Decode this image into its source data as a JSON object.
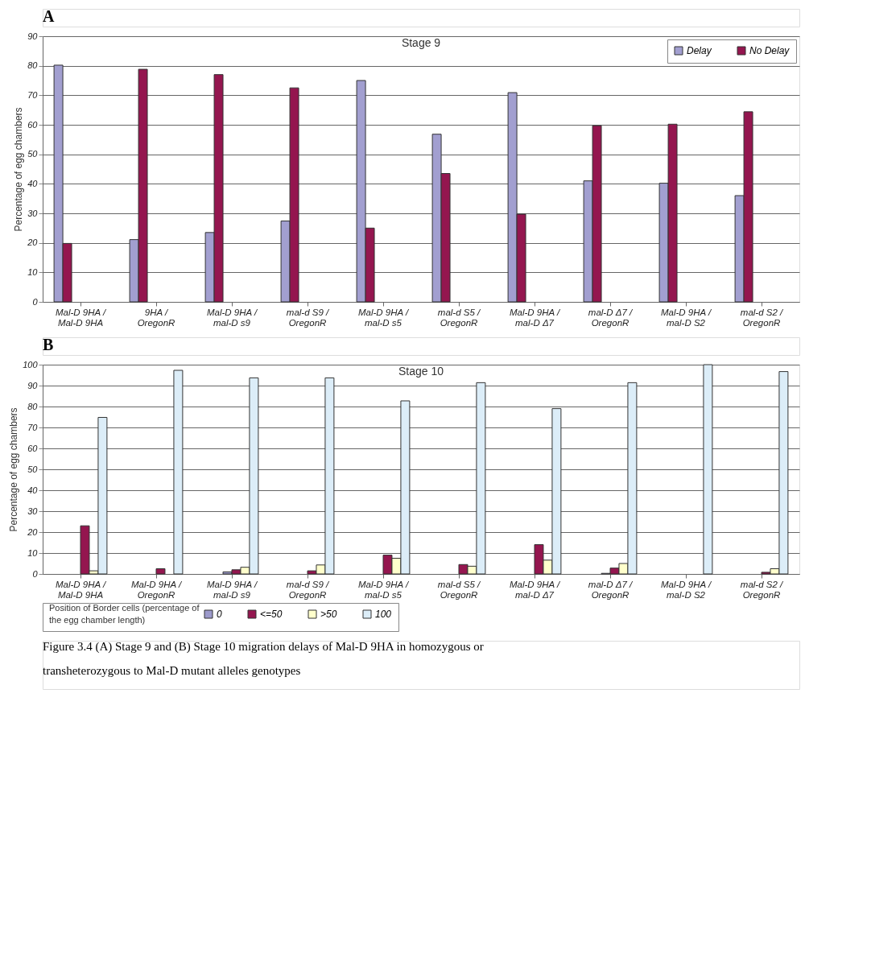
{
  "chart_data": [
    {
      "type": "bar",
      "title": "Stage 9",
      "ylabel": "Percentage of egg chambers",
      "annotations": [
        "A"
      ],
      "categories": [
        "Mal-D 9HA / Mal-D 9HA",
        "9HA / OregonR",
        "Mal-D 9HA / mal-D s9",
        "mal-d S9 / OregonR",
        "Mal-D 9HA / mal-D s5",
        "mal-d S5 / OregonR",
        "Mal-D 9HA / mal-D Δ7",
        "mal-D Δ7 / OregonR",
        "Mal-D 9HA / mal-D S2",
        "mal-d S2 / OregonR"
      ],
      "series": [
        {
          "name": "Delay",
          "color": "#a29fd0",
          "values": [
            80.2,
            21.1,
            23.5,
            27.4,
            75,
            56.8,
            70.9,
            41,
            40.2,
            36
          ]
        },
        {
          "name": "No Delay",
          "color": "#94164f",
          "values": [
            19.8,
            78.8,
            77,
            72.5,
            25,
            43.5,
            29.7,
            59.7,
            60.2,
            64.4
          ]
        }
      ],
      "ylim": [
        0,
        90
      ],
      "yticks": [
        0,
        10,
        20,
        30,
        40,
        50,
        60,
        70,
        80,
        90
      ],
      "grid": "y",
      "legend": "top right"
    },
    {
      "type": "bar",
      "title": "Stage 10",
      "ylabel": "Percentage of egg chambers",
      "legend_title": "Position of Border cells (percentage of the egg chamber length)",
      "annotations": [
        "B",
        "Figure 3.4 (A) Stage 9 and (B) Stage 10 migration delays of Mal-D 9HA in homozygous or transheterozygous to Mal-D mutant alleles genotypes"
      ],
      "categories": [
        "Mal-D 9HA / Mal-D 9HA",
        "Mal-D 9HA / OregonR",
        "Mal-D 9HA / mal-D s9",
        "mal-d S9 / OregonR",
        "Mal-D 9HA / mal-D s5",
        "mal-d S5 / OregonR",
        "Mal-D 9HA / mal-D Δ7",
        "mal-D Δ7 / OregonR",
        "Mal-D 9HA / mal-D S2",
        "mal-d S2 / OregonR"
      ],
      "series": [
        {
          "name": "0",
          "color": "#9c9acb",
          "values": [
            0,
            0,
            1,
            0,
            0,
            0,
            0,
            0.3,
            0,
            0
          ]
        },
        {
          "name": "<=50",
          "color": "#94164f",
          "values": [
            23,
            2.5,
            2,
            1.5,
            9,
            4.5,
            14,
            2.8,
            0,
            0.8
          ]
        },
        {
          "name": ">50",
          "color": "#ffffcc",
          "values": [
            1.5,
            0,
            3.2,
            4.3,
            7.5,
            3.7,
            6.6,
            5,
            0,
            2.5
          ]
        },
        {
          "name": "100",
          "color": "#dcedf8",
          "values": [
            74.8,
            97.3,
            93.7,
            93.7,
            82.7,
            91.4,
            79,
            91.4,
            100,
            96.7
          ]
        }
      ],
      "ylim": [
        0,
        100
      ],
      "yticks": [
        0,
        10,
        20,
        30,
        40,
        50,
        60,
        70,
        80,
        90,
        100
      ],
      "grid": "y",
      "legend": "bottom"
    }
  ]
}
